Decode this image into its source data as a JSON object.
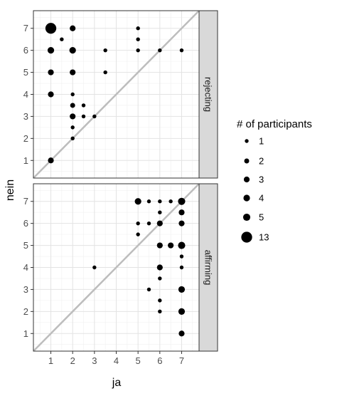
{
  "chart_data": {
    "type": "scatter",
    "xlabel": "ja",
    "ylabel": "nein",
    "xlim": [
      0.2,
      7.8
    ],
    "ylim": [
      0.2,
      7.8
    ],
    "ticks": [
      "1",
      "2",
      "3",
      "4",
      "5",
      "6",
      "7"
    ],
    "grid": true,
    "diagonal_color": "#bdbdbd",
    "point_color": "#000000",
    "panels": [
      {
        "label": "rejecting",
        "points": [
          {
            "x": 1,
            "y": 7,
            "n": 13
          },
          {
            "x": 1.5,
            "y": 6.5,
            "n": 1
          },
          {
            "x": 1,
            "y": 6,
            "n": 4
          },
          {
            "x": 1,
            "y": 5,
            "n": 3
          },
          {
            "x": 1,
            "y": 4,
            "n": 3
          },
          {
            "x": 1,
            "y": 1,
            "n": 3
          },
          {
            "x": 2,
            "y": 7,
            "n": 3
          },
          {
            "x": 2,
            "y": 6,
            "n": 4
          },
          {
            "x": 2,
            "y": 5,
            "n": 3
          },
          {
            "x": 2,
            "y": 4,
            "n": 1
          },
          {
            "x": 2,
            "y": 3.5,
            "n": 2
          },
          {
            "x": 2,
            "y": 3,
            "n": 3
          },
          {
            "x": 2,
            "y": 2.5,
            "n": 1
          },
          {
            "x": 2,
            "y": 2,
            "n": 1
          },
          {
            "x": 2.5,
            "y": 3.5,
            "n": 1
          },
          {
            "x": 2.5,
            "y": 3,
            "n": 1
          },
          {
            "x": 3,
            "y": 3,
            "n": 1
          },
          {
            "x": 3.5,
            "y": 6,
            "n": 1
          },
          {
            "x": 3.5,
            "y": 5,
            "n": 1
          },
          {
            "x": 5,
            "y": 7,
            "n": 1
          },
          {
            "x": 5,
            "y": 6.5,
            "n": 1
          },
          {
            "x": 5,
            "y": 6,
            "n": 1
          },
          {
            "x": 6,
            "y": 6,
            "n": 1
          },
          {
            "x": 7,
            "y": 6,
            "n": 1
          }
        ]
      },
      {
        "label": "affirming",
        "points": [
          {
            "x": 5,
            "y": 7,
            "n": 4
          },
          {
            "x": 5.5,
            "y": 7,
            "n": 1
          },
          {
            "x": 6,
            "y": 7,
            "n": 1
          },
          {
            "x": 6.5,
            "y": 7,
            "n": 1
          },
          {
            "x": 7,
            "y": 7,
            "n": 5
          },
          {
            "x": 6,
            "y": 6.5,
            "n": 1
          },
          {
            "x": 7,
            "y": 6.5,
            "n": 3
          },
          {
            "x": 5,
            "y": 6,
            "n": 1
          },
          {
            "x": 5.5,
            "y": 6,
            "n": 1
          },
          {
            "x": 6,
            "y": 6,
            "n": 3
          },
          {
            "x": 7,
            "y": 6,
            "n": 3
          },
          {
            "x": 5,
            "y": 5.5,
            "n": 1
          },
          {
            "x": 6,
            "y": 5,
            "n": 3
          },
          {
            "x": 6.5,
            "y": 5,
            "n": 3
          },
          {
            "x": 7,
            "y": 5,
            "n": 5
          },
          {
            "x": 7,
            "y": 4.5,
            "n": 1
          },
          {
            "x": 3,
            "y": 4,
            "n": 1
          },
          {
            "x": 6,
            "y": 4,
            "n": 3
          },
          {
            "x": 7,
            "y": 4,
            "n": 1
          },
          {
            "x": 6,
            "y": 3.5,
            "n": 1
          },
          {
            "x": 5.5,
            "y": 3,
            "n": 1
          },
          {
            "x": 7,
            "y": 3,
            "n": 4
          },
          {
            "x": 6,
            "y": 2.5,
            "n": 1
          },
          {
            "x": 6,
            "y": 2,
            "n": 1
          },
          {
            "x": 7,
            "y": 2,
            "n": 4
          },
          {
            "x": 7,
            "y": 1,
            "n": 3
          }
        ]
      }
    ],
    "legend": {
      "title": "# of participants",
      "position": "right",
      "entries": [
        {
          "label": "1",
          "n": 1
        },
        {
          "label": "2",
          "n": 2
        },
        {
          "label": "3",
          "n": 3
        },
        {
          "label": "4",
          "n": 4
        },
        {
          "label": "5",
          "n": 5
        },
        {
          "label": "13",
          "n": 13
        }
      ]
    }
  }
}
